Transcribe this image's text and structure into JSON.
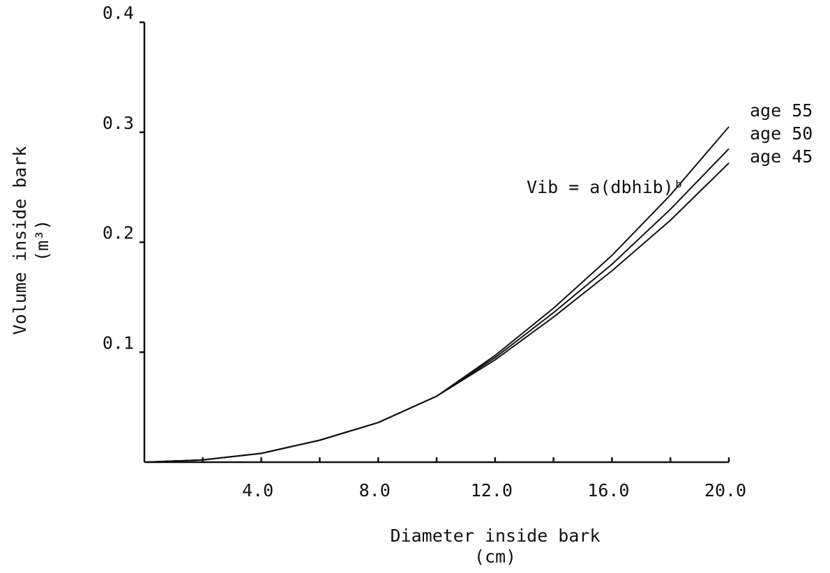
{
  "chart_data": {
    "type": "line",
    "annotation": "Vib = a(dbhib)ᵇ",
    "xlabel": [
      "Diameter inside bark",
      "(cm)"
    ],
    "ylabel": [
      "Volume inside bark",
      "(m³)"
    ],
    "x": [
      0,
      2,
      4,
      6,
      8,
      10,
      12,
      14,
      16,
      18,
      20
    ],
    "series": [
      {
        "name": "age 55",
        "color": "#111111",
        "values": [
          0,
          0.002,
          0.008,
          0.02,
          0.036,
          0.06,
          0.097,
          0.14,
          0.188,
          0.243,
          0.305
        ]
      },
      {
        "name": "age 50",
        "color": "#111111",
        "values": [
          0,
          0.002,
          0.008,
          0.02,
          0.036,
          0.06,
          0.095,
          0.136,
          0.18,
          0.23,
          0.285
        ]
      },
      {
        "name": "age 45",
        "color": "#111111",
        "values": [
          0,
          0.002,
          0.008,
          0.02,
          0.036,
          0.06,
          0.093,
          0.132,
          0.174,
          0.22,
          0.272
        ]
      }
    ],
    "xlim": [
      0,
      20
    ],
    "xticks": [
      {
        "value": 4,
        "label": "4.0"
      },
      {
        "value": 8,
        "label": "8.0"
      },
      {
        "value": 12,
        "label": "12.0"
      },
      {
        "value": 16,
        "label": "16.0"
      },
      {
        "value": 20,
        "label": "20.0"
      }
    ],
    "xminor": [
      2,
      6,
      10,
      14,
      18
    ],
    "ylim": [
      0,
      0.4
    ],
    "yticks": [
      0.1,
      0.2,
      0.3,
      0.4
    ],
    "grid": false
  }
}
